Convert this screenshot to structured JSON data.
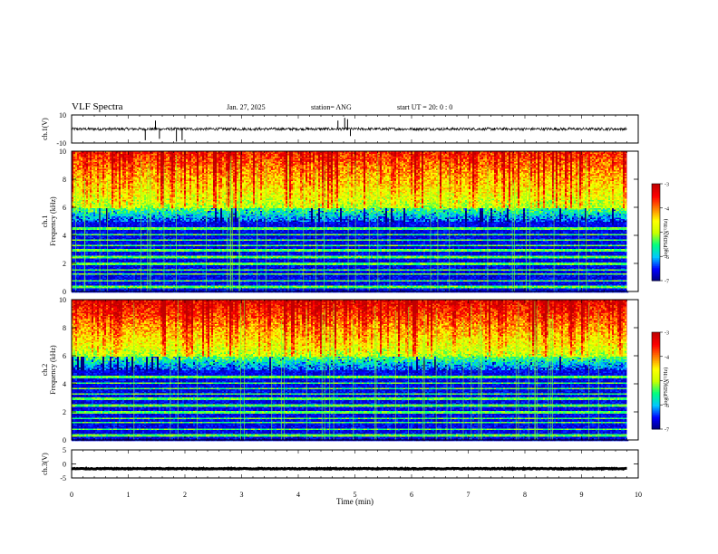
{
  "header": {
    "title": "VLF Spectra",
    "date": "Jan. 27, 2025",
    "station": "station= ANG",
    "start": "start  UT =   20: 0  : 0"
  },
  "chart_data": [
    {
      "type": "line",
      "ylabel": "ch.1(V)",
      "ylim": [
        -10,
        10
      ],
      "yticks": [
        "10",
        "-10"
      ],
      "baseline": 0,
      "noise_amplitude": 2,
      "spikes": [
        {
          "x": 1.3,
          "y": -8
        },
        {
          "x": 1.48,
          "y": 6
        },
        {
          "x": 1.55,
          "y": -7
        },
        {
          "x": 1.85,
          "y": -9
        },
        {
          "x": 1.95,
          "y": -8
        },
        {
          "x": 4.7,
          "y": 6
        },
        {
          "x": 4.82,
          "y": 8
        },
        {
          "x": 4.87,
          "y": 7
        },
        {
          "x": 4.92,
          "y": -5
        }
      ],
      "xlim": [
        0,
        10
      ]
    },
    {
      "type": "heatmap",
      "ylabel": "ch.1\nFrequency (kHz)",
      "ylim": [
        0,
        10
      ],
      "yticks": [
        "0",
        "2",
        "4",
        "6",
        "8",
        "10"
      ],
      "xlim": [
        0,
        9.8
      ],
      "description_levels": {
        "low_freq_level": -7,
        "high_freq_level": -3.6
      },
      "colorbar": {
        "label": "log(PSD)(V²/Hz)",
        "ticks": [
          "-3",
          "-4",
          "-5",
          "-6",
          "-7"
        ],
        "range": [
          -7,
          -3
        ]
      }
    },
    {
      "type": "heatmap",
      "ylabel": "ch.2\nFrequency (kHz)",
      "ylim": [
        0,
        10
      ],
      "yticks": [
        "0",
        "2",
        "4",
        "6",
        "8",
        "10"
      ],
      "xlim": [
        0,
        9.8
      ],
      "description_levels": {
        "low_freq_level": -7,
        "high_freq_level": -3.3
      },
      "colorbar": {
        "label": "log(PSD)(V²/Hz)",
        "ticks": [
          "-3",
          "-4",
          "-5",
          "-6",
          "-7"
        ],
        "range": [
          -7,
          -3
        ]
      }
    },
    {
      "type": "line",
      "ylabel": "ch.3(V)",
      "ylim": [
        -5,
        5
      ],
      "yticks": [
        "5",
        "0",
        "-5"
      ],
      "baseline": -1.7,
      "noise_amplitude": 0.3,
      "xlim": [
        0,
        10
      ]
    }
  ],
  "xaxis": {
    "label": "Time  (min)",
    "ticks": [
      "0",
      "1",
      "2",
      "3",
      "4",
      "5",
      "6",
      "7",
      "8",
      "9",
      "10"
    ],
    "xlim": [
      0,
      10
    ]
  },
  "colors": {
    "colormap": [
      "#00007a",
      "#0000ff",
      "#00c8ff",
      "#00ff80",
      "#c8ff00",
      "#ffff00",
      "#ff8000",
      "#ff0000",
      "#c00000"
    ],
    "line": "#000000"
  }
}
